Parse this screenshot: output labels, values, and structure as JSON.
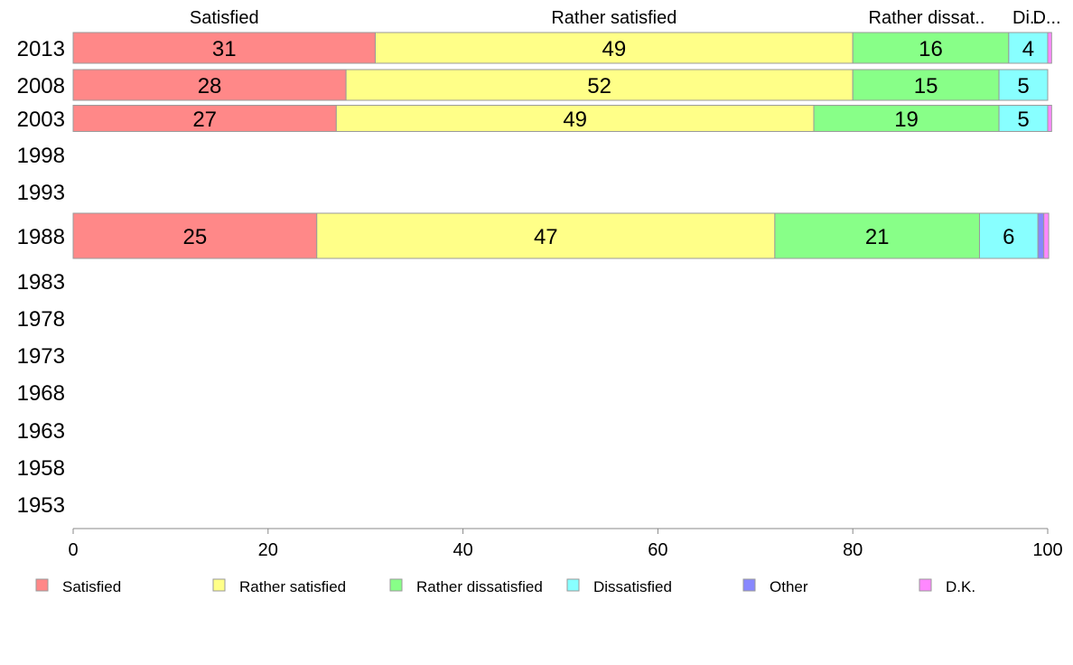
{
  "chart_data": {
    "type": "bar",
    "orientation": "horizontal",
    "stacked": true,
    "categories": [
      "2013",
      "2008",
      "2003",
      "1998",
      "1993",
      "1988",
      "1983",
      "1978",
      "1973",
      "1968",
      "1963",
      "1958",
      "1953"
    ],
    "series": [
      {
        "name": "Satisfied",
        "color": "#ff8888",
        "values": [
          31,
          28,
          27,
          null,
          null,
          25,
          null,
          null,
          null,
          null,
          null,
          null,
          null
        ]
      },
      {
        "name": "Rather satisfied",
        "color": "#ffff88",
        "values": [
          49,
          52,
          49,
          null,
          null,
          47,
          null,
          null,
          null,
          null,
          null,
          null,
          null
        ]
      },
      {
        "name": "Rather dissatisfied",
        "color": "#88ff88",
        "values": [
          16,
          15,
          19,
          null,
          null,
          21,
          null,
          null,
          null,
          null,
          null,
          null,
          null
        ]
      },
      {
        "name": "Dissatisfied",
        "color": "#88ffff",
        "values": [
          4,
          5,
          5,
          null,
          null,
          6,
          null,
          null,
          null,
          null,
          null,
          null,
          null
        ]
      },
      {
        "name": "Other",
        "color": "#8888ff",
        "values": [
          0,
          0,
          0,
          null,
          null,
          0.6,
          null,
          null,
          null,
          null,
          null,
          null,
          null
        ]
      },
      {
        "name": "D.K.",
        "color": "#ff88ff",
        "values": [
          0.4,
          0,
          0.4,
          null,
          null,
          0.5,
          null,
          null,
          null,
          null,
          null,
          null,
          null
        ]
      }
    ],
    "top_labels": [
      "Satisfied",
      "Rather satisfied",
      "Rather dissat..",
      "Di..",
      "D..."
    ],
    "xlim": [
      0,
      100
    ],
    "xticks": [
      0,
      20,
      40,
      60,
      80,
      100
    ],
    "legend_position": "bottom",
    "grid": false
  }
}
